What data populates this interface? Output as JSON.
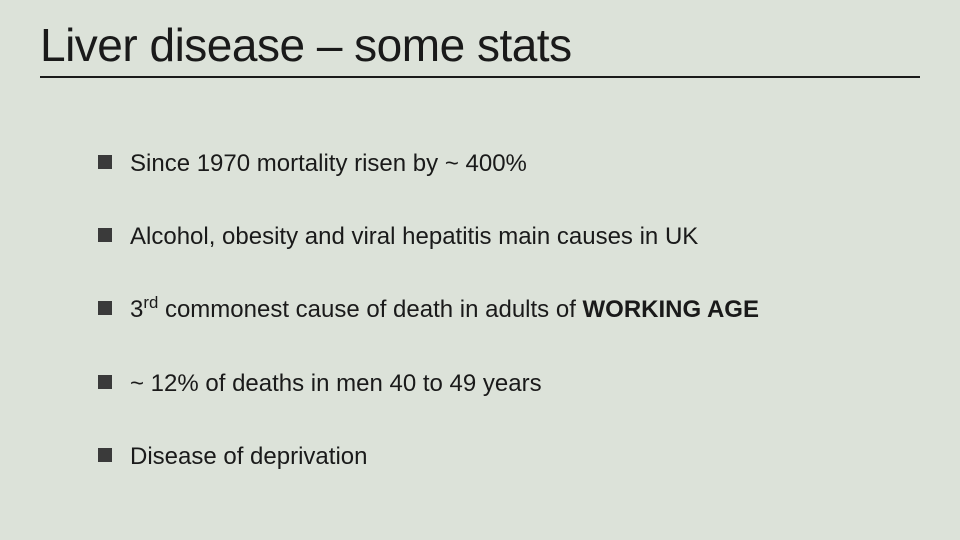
{
  "slide": {
    "title": "Liver disease – some stats",
    "background_color": "#dce2d9",
    "text_color": "#1a1a1a",
    "title_fontsize": 46,
    "body_fontsize": 24,
    "bullet_color": "#3a3a3a",
    "underline_color": "#1a1a1a",
    "bullets": [
      {
        "text": "Since 1970 mortality risen by ~ 400%",
        "has_html": false
      },
      {
        "text": "Alcohol, obesity and viral hepatitis main causes in UK",
        "has_html": false
      },
      {
        "prefix": "3",
        "super": "rd",
        "mid": " commonest cause of death in adults of ",
        "bold": "WORKING AGE",
        "has_html": true
      },
      {
        "text": "~ 12% of deaths in men 40 to 49 years",
        "has_html": false
      },
      {
        "text": "Disease of deprivation",
        "has_html": false
      }
    ]
  }
}
